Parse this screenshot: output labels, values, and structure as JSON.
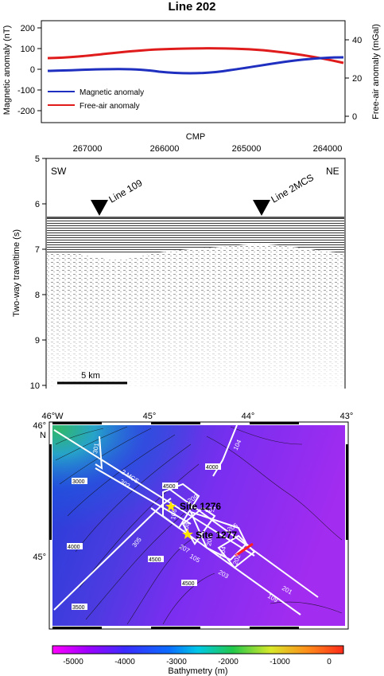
{
  "title": "Line 202",
  "panel_top": {
    "left_axis_label": "Magnetic anomaly (nT)",
    "right_axis_label": "Free-air anomaly (mGal)",
    "left_ticks": [
      "200",
      "100",
      "0",
      "-100",
      "-200"
    ],
    "right_ticks": [
      "40",
      "20",
      "0"
    ],
    "legend": [
      {
        "label": "Magnetic anomaly",
        "color": "#1f2fbf"
      },
      {
        "label": "Free-air anomaly",
        "color": "#e01b1b"
      }
    ]
  },
  "panel_seismic": {
    "x_title": "CMP",
    "x_ticks": [
      "267000",
      "266000",
      "265000",
      "264000"
    ],
    "y_label": "Two-way traveltime (s)",
    "y_ticks": [
      "5",
      "6",
      "7",
      "8",
      "9",
      "10"
    ],
    "corner_left": "SW",
    "corner_right": "NE",
    "markers": [
      "Line 109",
      "Line 2MCS"
    ],
    "scale_label": "5 km"
  },
  "panel_map": {
    "top_ticks": [
      "46°W",
      "45°",
      "44°",
      "43°"
    ],
    "left_ticks": [
      "46°",
      "N",
      "45°"
    ],
    "sites": [
      "Site 1276",
      "Site 1277"
    ],
    "line_labels": [
      "301",
      "2 MCS",
      "302",
      "305",
      "104",
      "209",
      "107",
      "106",
      "208",
      "206",
      "205",
      "204",
      "202",
      "203",
      "105",
      "207",
      "201",
      "109"
    ],
    "contour_labels": [
      "3000",
      "4000",
      "3500",
      "4500",
      "4500",
      "4000",
      "4500"
    ],
    "colorbar_ticks": [
      "-5000",
      "-4000",
      "-3000",
      "-2000",
      "-1000",
      "0"
    ],
    "colorbar_label": "Bathymetry (m)"
  }
}
